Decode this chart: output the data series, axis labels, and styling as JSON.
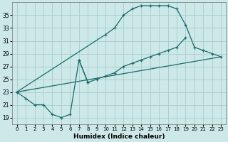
{
  "xlabel": "Humidex (Indice chaleur)",
  "bg_color": "#cce8e8",
  "grid_color": "#aacccc",
  "line_color": "#1a6b6b",
  "xlim": [
    -0.5,
    23.5
  ],
  "ylim": [
    18.0,
    37.0
  ],
  "xticks": [
    0,
    1,
    2,
    3,
    4,
    5,
    6,
    7,
    8,
    9,
    10,
    11,
    12,
    13,
    14,
    15,
    16,
    17,
    18,
    19,
    20,
    21,
    22,
    23
  ],
  "yticks": [
    19,
    21,
    23,
    25,
    27,
    29,
    31,
    33,
    35
  ],
  "line1_x": [
    0,
    1,
    2,
    3,
    4,
    5,
    6,
    7,
    8
  ],
  "line1_y": [
    23.0,
    22.0,
    21.0,
    21.0,
    19.5,
    19.0,
    19.5,
    28.0,
    24.5
  ],
  "line2_x": [
    0,
    10,
    11,
    12,
    13,
    14,
    15,
    16,
    17,
    18,
    19,
    20,
    21,
    22,
    23
  ],
  "line2_y": [
    23.0,
    32.0,
    33.0,
    35.0,
    36.0,
    36.5,
    36.5,
    36.5,
    36.5,
    36.0,
    33.5,
    30.0,
    29.5,
    29.0,
    28.5
  ],
  "line3_x": [
    0,
    23
  ],
  "line3_y": [
    23.0,
    28.5
  ],
  "line4_x": [
    7,
    8,
    9,
    10,
    11,
    12,
    13,
    14,
    15,
    16,
    17,
    18,
    19
  ],
  "line4_y": [
    28.0,
    24.5,
    25.0,
    25.5,
    26.0,
    27.0,
    27.5,
    28.0,
    28.5,
    29.0,
    29.5,
    30.0,
    31.5
  ]
}
